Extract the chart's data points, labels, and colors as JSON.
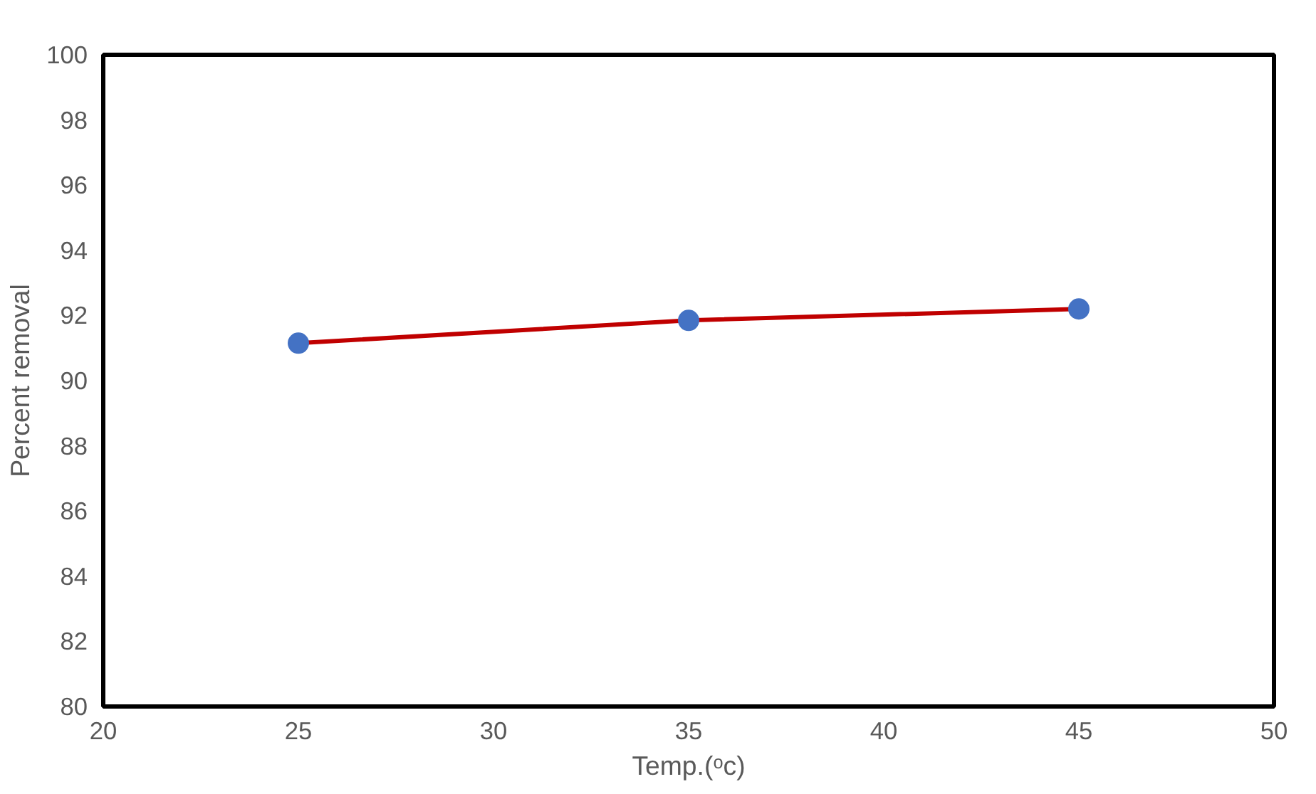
{
  "chart_data": {
    "type": "line",
    "xlabel": "Temp.(ᵒc)",
    "ylabel": "Percent removal",
    "x": [
      25,
      35,
      45
    ],
    "series": [
      {
        "color": "#c00000",
        "colors": [
          "#4472c4",
          "#4472c4",
          "#4472c4"
        ],
        "values": [
          91.15,
          91.85,
          92.2
        ]
      }
    ],
    "xlim": [
      20,
      50
    ],
    "xticks": [
      20,
      25,
      30,
      35,
      40,
      45,
      50
    ],
    "ylim": [
      80,
      100
    ],
    "yticks": [
      80,
      82,
      84,
      86,
      88,
      90,
      92,
      94,
      96,
      98,
      100
    ],
    "grid": false,
    "marker": "circle",
    "line_style": "solid"
  }
}
